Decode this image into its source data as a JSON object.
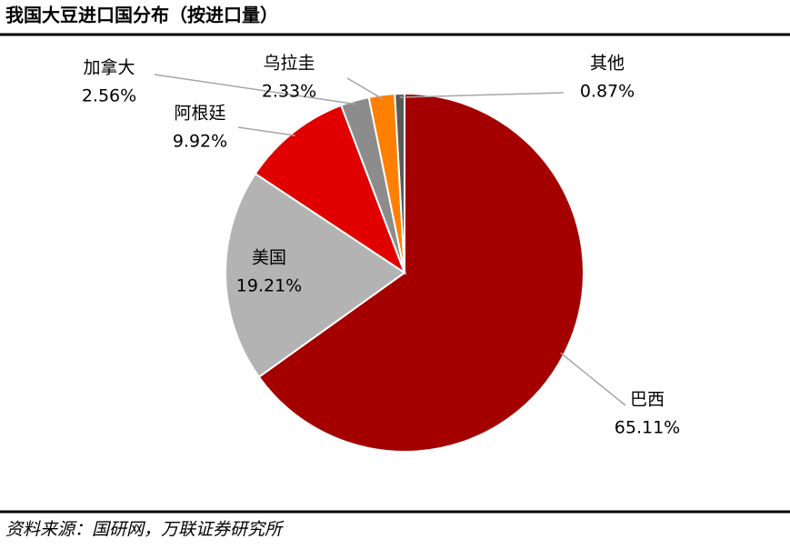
{
  "chart_data": {
    "type": "pie",
    "title": "我国大豆进口国分布（按进口量）",
    "source": "资料来源：国研网，万联证券研究所",
    "categories": [
      "巴西",
      "美国",
      "阿根廷",
      "加拿大",
      "乌拉圭",
      "其他"
    ],
    "values": [
      65.11,
      19.21,
      9.92,
      2.56,
      2.33,
      0.87
    ],
    "value_labels": [
      "65.11%",
      "19.21%",
      "9.92%",
      "2.56%",
      "2.33%",
      "0.87%"
    ],
    "colors": [
      "#a50000",
      "#b3b3b3",
      "#e00000",
      "#8c8c8c",
      "#ff7f00",
      "#595959"
    ]
  }
}
